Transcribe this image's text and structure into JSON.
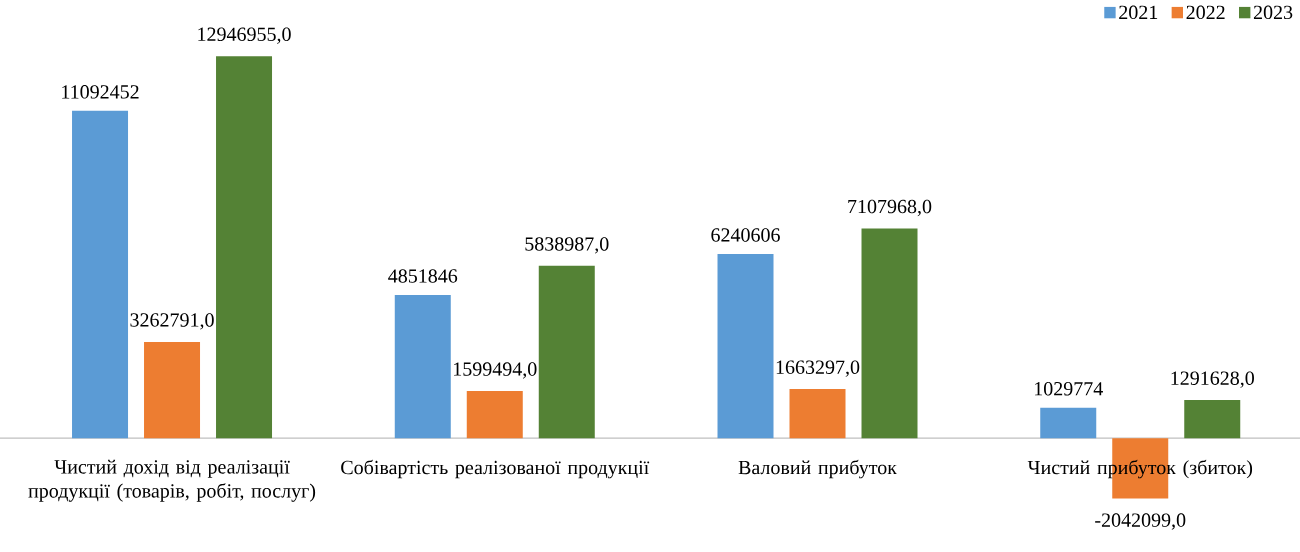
{
  "chart_data": {
    "type": "bar",
    "categories": [
      "Чистий дохід від реалізації продукції (товарів, робіт, послуг)",
      "Собівартість реалізованої продукції",
      "Валовий прибуток",
      "Чистий прибуток (збиток)"
    ],
    "series": [
      {
        "name": "2021",
        "color": "#5b9bd5",
        "values": [
          11092452,
          4851846,
          6240606,
          1029774
        ],
        "value_labels": [
          "11092452",
          "4851846",
          "6240606",
          "1029774"
        ]
      },
      {
        "name": "2022",
        "color": "#ed7d31",
        "values": [
          3262791.0,
          1599494.0,
          1663297.0,
          -2042099.0
        ],
        "value_labels": [
          "3262791,0",
          "1599494,0",
          "1663297,0",
          "-2042099,0"
        ]
      },
      {
        "name": "2023",
        "color": "#548235",
        "values": [
          12946955.0,
          5838987.0,
          7107968.0,
          1291628.0
        ],
        "value_labels": [
          "12946955,0",
          "5838987,0",
          "7107968,0",
          "1291628,0"
        ]
      }
    ],
    "legend": "top right"
  }
}
